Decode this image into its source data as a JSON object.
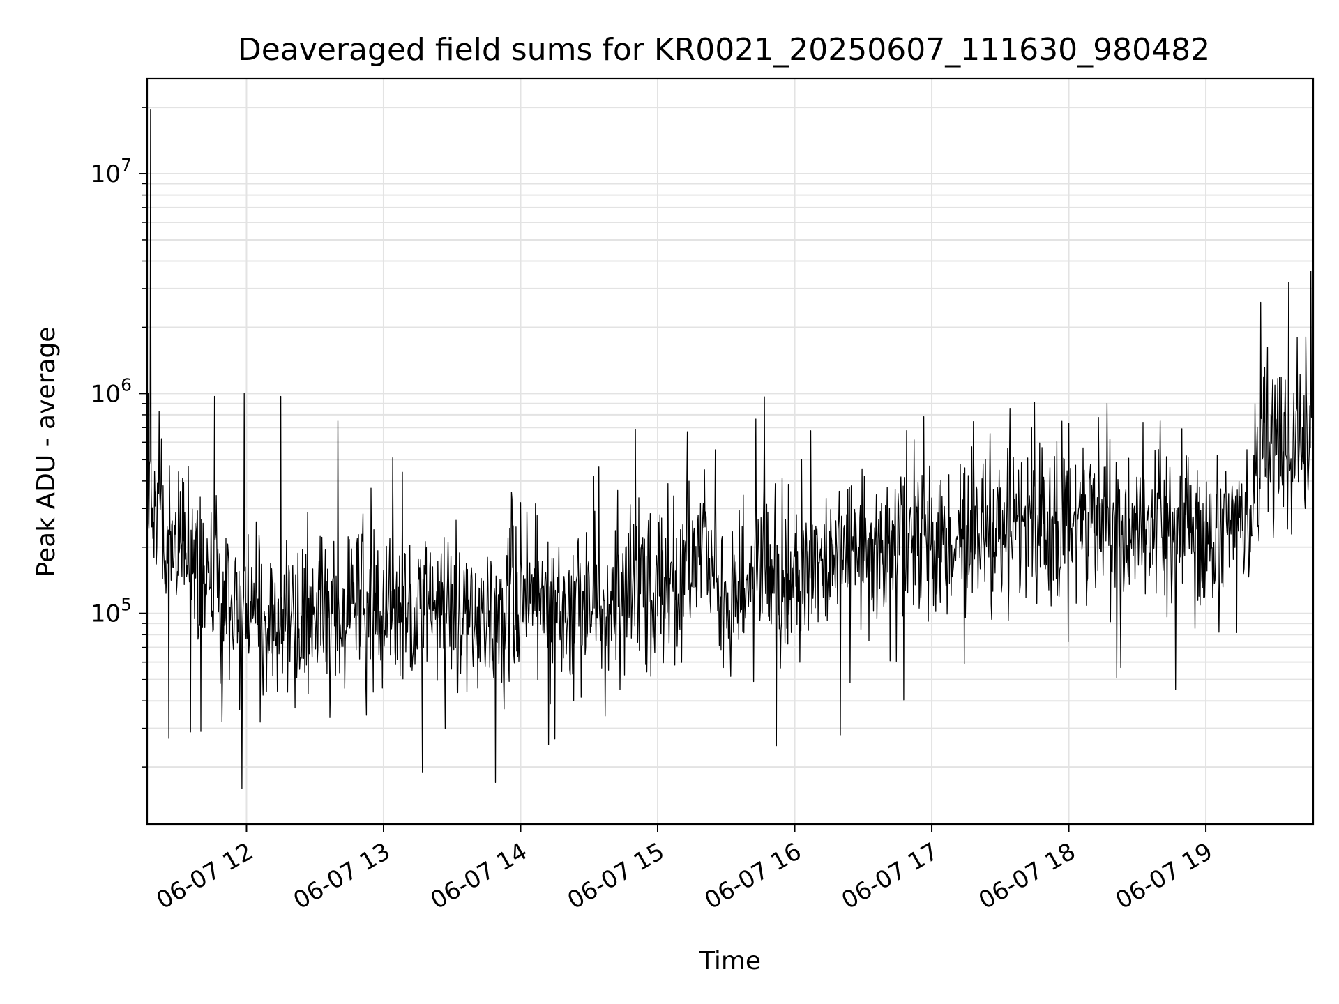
{
  "chart_data": {
    "type": "line",
    "title": "Deaveraged field sums for KR0021_20250607_111630_980482",
    "xlabel": "Time",
    "ylabel": "Peak ADU - average",
    "y_scale": "log",
    "ylim": [
      11000,
      27000000
    ],
    "xlim": [
      "2025-06-07 11:16:30",
      "2025-06-07 19:47:00"
    ],
    "x_ticks": [
      "06-07 12",
      "06-07 13",
      "06-07 14",
      "06-07 15",
      "06-07 16",
      "06-07 17",
      "06-07 18",
      "06-07 19"
    ],
    "y_ticks": [
      {
        "base": "10",
        "exp": "5",
        "value": 100000
      },
      {
        "base": "10",
        "exp": "6",
        "value": 1000000
      },
      {
        "base": "10",
        "exp": "7",
        "value": 10000000
      }
    ],
    "grid": true,
    "line_color": "#000000",
    "sample_interval_seconds": 15,
    "trend": [
      {
        "x": "2025-06-07 11:16:30",
        "y": 380000
      },
      {
        "x": "2025-06-07 11:25:00",
        "y": 210000
      },
      {
        "x": "2025-06-07 11:40:00",
        "y": 140000
      },
      {
        "x": "2025-06-07 12:00:00",
        "y": 95000
      },
      {
        "x": "2025-06-07 12:30:00",
        "y": 92000
      },
      {
        "x": "2025-06-07 13:00:00",
        "y": 108000
      },
      {
        "x": "2025-06-07 13:30:00",
        "y": 100000
      },
      {
        "x": "2025-06-07 14:00:00",
        "y": 105000
      },
      {
        "x": "2025-06-07 14:30:00",
        "y": 110000
      },
      {
        "x": "2025-06-07 15:00:00",
        "y": 120000
      },
      {
        "x": "2025-06-07 15:15:00",
        "y": 160000
      },
      {
        "x": "2025-06-07 15:30:00",
        "y": 140000
      },
      {
        "x": "2025-06-07 16:00:00",
        "y": 155000
      },
      {
        "x": "2025-06-07 16:30:00",
        "y": 190000
      },
      {
        "x": "2025-06-07 17:00:00",
        "y": 210000
      },
      {
        "x": "2025-06-07 17:30:00",
        "y": 250000
      },
      {
        "x": "2025-06-07 18:00:00",
        "y": 270000
      },
      {
        "x": "2025-06-07 18:30:00",
        "y": 240000
      },
      {
        "x": "2025-06-07 19:00:00",
        "y": 230000
      },
      {
        "x": "2025-06-07 19:20:00",
        "y": 270000
      },
      {
        "x": "2025-06-07 19:25:00",
        "y": 620000
      },
      {
        "x": "2025-06-07 19:47:00",
        "y": 620000
      }
    ],
    "spikes": [
      {
        "x": "2025-06-07 11:18:00",
        "y": 19500000
      },
      {
        "x": "2025-06-07 11:17:00",
        "y": 1000000
      },
      {
        "x": "2025-06-07 11:26:00",
        "y": 27000
      },
      {
        "x": "2025-06-07 11:46:00",
        "y": 970000
      },
      {
        "x": "2025-06-07 11:59:00",
        "y": 1000000
      },
      {
        "x": "2025-06-07 11:58:00",
        "y": 16000
      },
      {
        "x": "2025-06-07 12:15:00",
        "y": 970000
      },
      {
        "x": "2025-06-07 12:40:00",
        "y": 750000
      },
      {
        "x": "2025-06-07 13:04:00",
        "y": 510000
      },
      {
        "x": "2025-06-07 13:17:00",
        "y": 19000
      },
      {
        "x": "2025-06-07 13:49:00",
        "y": 17000
      },
      {
        "x": "2025-06-07 14:32:00",
        "y": 420000
      },
      {
        "x": "2025-06-07 15:13:00",
        "y": 670000
      },
      {
        "x": "2025-06-07 15:52:00",
        "y": 25000
      },
      {
        "x": "2025-06-07 16:20:00",
        "y": 28000
      },
      {
        "x": "2025-06-07 18:00:00",
        "y": 730000
      },
      {
        "x": "2025-06-07 18:21:00",
        "y": 51000
      },
      {
        "x": "2025-06-07 18:40:00",
        "y": 750000
      },
      {
        "x": "2025-06-07 19:24:00",
        "y": 2600000
      },
      {
        "x": "2025-06-07 19:40:00",
        "y": 1800000
      },
      {
        "x": "2025-06-07 19:46:00",
        "y": 3600000
      }
    ]
  }
}
